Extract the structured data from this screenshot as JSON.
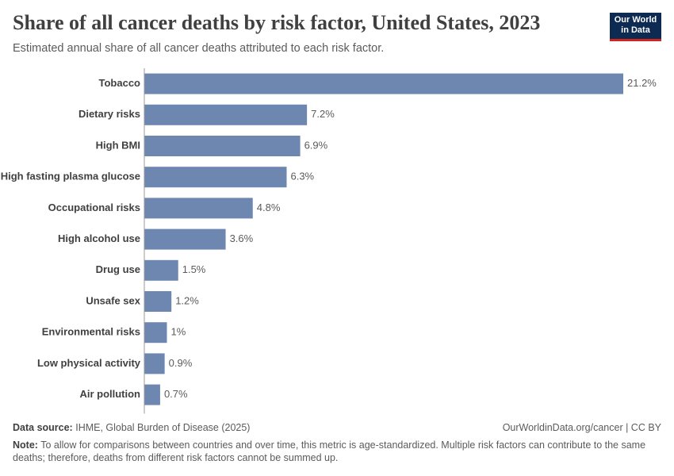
{
  "chart_data": {
    "type": "bar",
    "orientation": "horizontal",
    "title": "Share of all cancer deaths by risk factor, United States, 2023",
    "subtitle": "Estimated annual share of all cancer deaths attributed to each risk factor.",
    "categories": [
      "Tobacco",
      "Dietary risks",
      "High BMI",
      "High fasting plasma glucose",
      "Occupational risks",
      "High alcohol use",
      "Drug use",
      "Unsafe sex",
      "Environmental risks",
      "Low physical activity",
      "Air pollution"
    ],
    "values": [
      21.2,
      7.2,
      6.9,
      6.3,
      4.8,
      3.6,
      1.5,
      1.2,
      1,
      0.9,
      0.7
    ],
    "value_labels": [
      "21.2%",
      "7.2%",
      "6.9%",
      "6.3%",
      "4.8%",
      "3.6%",
      "1.5%",
      "1.2%",
      "1%",
      "0.9%",
      "0.7%"
    ],
    "color": "#6d87b0"
  },
  "logo": {
    "line1": "Our World",
    "line2": "in Data"
  },
  "footer": {
    "source_label": "Data source:",
    "source": "IHME, Global Burden of Disease (2025)",
    "credit": "OurWorldinData.org/cancer | CC BY",
    "note_label": "Note:",
    "note": "To allow for comparisons between countries and over time, this metric is age-standardized. Multiple risk factors can contribute to the same deaths; therefore, deaths from different risk factors cannot be summed up."
  }
}
